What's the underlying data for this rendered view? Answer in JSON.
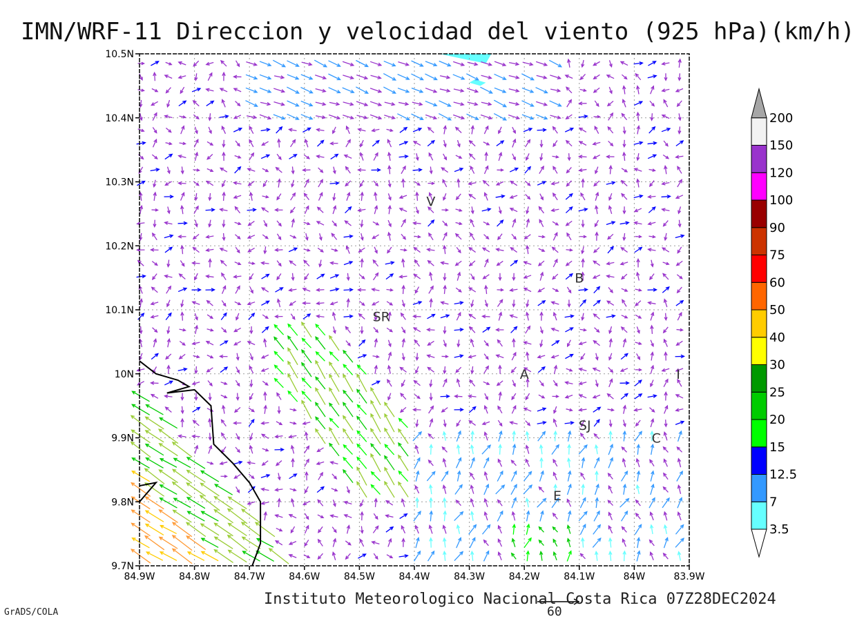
{
  "title": "IMN/WRF-11 Direccion y velocidad del viento (925 hPa)(km/h)",
  "footer": "Instituto Meteorologico Nacional Costa Rica 07Z28DEC2024",
  "credit": "GrADS/COLA",
  "reference_vector": {
    "label": "60",
    "speed_kmh": 60
  },
  "chart_data": {
    "type": "vector_field_map",
    "title": "IMN/WRF-11 Direccion y velocidad del viento (925 hPa)(km/h)",
    "xlim": [
      -84.9,
      -83.9
    ],
    "ylim": [
      9.7,
      10.5
    ],
    "x_ticks": [
      {
        "value": -84.9,
        "label": "84.9W"
      },
      {
        "value": -84.8,
        "label": "84.8W"
      },
      {
        "value": -84.7,
        "label": "84.7W"
      },
      {
        "value": -84.6,
        "label": "84.6W"
      },
      {
        "value": -84.5,
        "label": "84.5W"
      },
      {
        "value": -84.4,
        "label": "84.4W"
      },
      {
        "value": -84.3,
        "label": "84.3W"
      },
      {
        "value": -84.2,
        "label": "84.2W"
      },
      {
        "value": -84.1,
        "label": "84.1W"
      },
      {
        "value": -84.0,
        "label": "84W"
      },
      {
        "value": -83.9,
        "label": "83.9W"
      }
    ],
    "y_ticks": [
      {
        "value": 9.7,
        "label": "9.7N"
      },
      {
        "value": 9.8,
        "label": "9.8N"
      },
      {
        "value": 9.9,
        "label": "9.9N"
      },
      {
        "value": 10.0,
        "label": "10N"
      },
      {
        "value": 10.1,
        "label": "10.1N"
      },
      {
        "value": 10.2,
        "label": "10.2N"
      },
      {
        "value": 10.3,
        "label": "10.3N"
      },
      {
        "value": 10.4,
        "label": "10.4N"
      },
      {
        "value": 10.5,
        "label": "10.5N"
      }
    ],
    "grid": true,
    "colorbar": {
      "placement": "right",
      "levels": [
        {
          "max": 3.5,
          "color": "#66ffff"
        },
        {
          "max": 7,
          "color": "#3399ff"
        },
        {
          "max": 12.5,
          "color": "#0000ff"
        },
        {
          "max": 15,
          "color": "#00ff00"
        },
        {
          "max": 20,
          "color": "#00cc00"
        },
        {
          "max": 25,
          "color": "#009900"
        },
        {
          "max": 30,
          "color": "#ffff00"
        },
        {
          "max": 40,
          "color": "#ffcc00"
        },
        {
          "max": 50,
          "color": "#ff6600"
        },
        {
          "max": 60,
          "color": "#ff0000"
        },
        {
          "max": 75,
          "color": "#cc3300"
        },
        {
          "max": 90,
          "color": "#990000"
        },
        {
          "max": 100,
          "color": "#ff00ff"
        },
        {
          "max": 120,
          "color": "#9933cc"
        },
        {
          "max": 150,
          "color": "#f2f2f2"
        },
        {
          "max": 200,
          "color": "#a6a6a6"
        }
      ],
      "tick_labels": [
        "3.5",
        "7",
        "12.5",
        "15",
        "20",
        "25",
        "30",
        "40",
        "50",
        "60",
        "75",
        "90",
        "100",
        "120",
        "150",
        "200"
      ]
    },
    "arrow_colors": [
      "#9933cc",
      "#3399ff",
      "#0000ff",
      "#66ffff",
      "#00cc00",
      "#00ff00",
      "#99cc33",
      "#ffcc00",
      "#ff9933",
      "#ff3333"
    ],
    "place_labels": [
      {
        "text": "V",
        "lon": -84.37,
        "lat": 10.27
      },
      {
        "text": "B",
        "lon": -84.1,
        "lat": 10.15
      },
      {
        "text": "SR",
        "lon": -84.46,
        "lat": 10.09
      },
      {
        "text": "A",
        "lon": -84.2,
        "lat": 10.0
      },
      {
        "text": "I",
        "lon": -83.92,
        "lat": 10.0
      },
      {
        "text": "SJ",
        "lon": -84.09,
        "lat": 9.92
      },
      {
        "text": "C",
        "lon": -83.96,
        "lat": 9.9
      },
      {
        "text": "E",
        "lon": -84.14,
        "lat": 9.81
      }
    ],
    "coastline": [
      [
        -84.9,
        10.02
      ],
      [
        -84.87,
        10.0
      ],
      [
        -84.83,
        9.99
      ],
      [
        -84.81,
        9.98
      ],
      [
        -84.85,
        9.97
      ],
      [
        -84.8,
        9.975
      ],
      [
        -84.77,
        9.95
      ],
      [
        -84.765,
        9.89
      ],
      [
        -84.73,
        9.86
      ],
      [
        -84.7,
        9.83
      ],
      [
        -84.68,
        9.8
      ],
      [
        -84.68,
        9.75
      ],
      [
        -84.68,
        9.735
      ],
      [
        -84.695,
        9.7
      ]
    ],
    "coastline2": [
      [
        -84.9,
        9.8
      ],
      [
        -84.87,
        9.83
      ],
      [
        -84.9,
        9.825
      ]
    ],
    "shaded_areas": [
      {
        "color": "#66ffff",
        "points": [
          [
            -84.355,
            10.5
          ],
          [
            -84.26,
            10.5
          ],
          [
            -84.27,
            10.485
          ],
          [
            -84.3,
            10.49
          ]
        ]
      },
      {
        "color": "#66ffff",
        "points": [
          [
            -84.29,
            10.46
          ],
          [
            -84.27,
            10.455
          ],
          [
            -84.28,
            10.45
          ],
          [
            -84.3,
            10.455
          ]
        ]
      }
    ]
  }
}
